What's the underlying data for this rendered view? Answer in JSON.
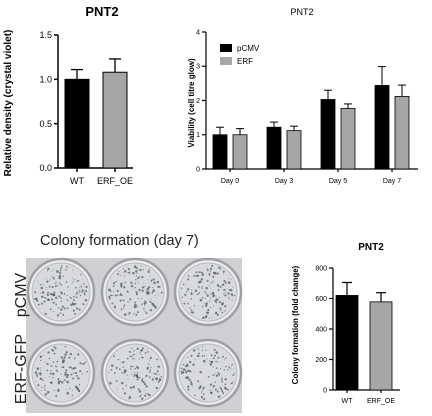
{
  "colors": {
    "black_bar": "#000000",
    "gray_bar": "#a6a6a6",
    "dish_bg": "#d9dadd"
  },
  "chart_data": [
    {
      "type": "bar",
      "title": "PNT2",
      "categories": [
        "WT",
        "ERF_OE"
      ],
      "values": [
        1.0,
        1.08
      ],
      "errors": [
        0.11,
        0.15
      ],
      "colors": [
        "#000000",
        "#a6a6a6"
      ],
      "ylabel": "Relative density (crystal violet)",
      "ylim": [
        0.0,
        1.5
      ],
      "yticks": [
        "0.0",
        "0.5",
        "1.0",
        "1.5"
      ],
      "grid": false
    },
    {
      "type": "bar",
      "title": "PNT2",
      "categories": [
        "Day 0",
        "Day 3",
        "Day 5",
        "Day 7"
      ],
      "series": [
        {
          "name": "pCMV",
          "color": "#000000",
          "values": [
            1.0,
            1.22,
            2.03,
            2.44
          ],
          "errors": [
            0.22,
            0.15,
            0.27,
            0.55
          ]
        },
        {
          "name": "ERF",
          "color": "#a6a6a6",
          "values": [
            1.0,
            1.12,
            1.77,
            2.12
          ],
          "errors": [
            0.18,
            0.13,
            0.13,
            0.33
          ]
        }
      ],
      "ylabel": "Viability (cell titre glow)",
      "ylim": [
        0,
        4
      ],
      "yticks": [
        "0",
        "1",
        "2",
        "3",
        "4"
      ],
      "legend": "top-left",
      "grid": false
    },
    {
      "type": "bar",
      "title": "PNT2",
      "categories": [
        "WT",
        "ERF_OE"
      ],
      "values": [
        620,
        578
      ],
      "errors": [
        85,
        60
      ],
      "colors": [
        "#000000",
        "#a6a6a6"
      ],
      "ylabel": "Colony formation (fold change)",
      "ylim": [
        0,
        800
      ],
      "yticks": [
        "0",
        "200",
        "400",
        "600",
        "800"
      ],
      "grid": false
    }
  ],
  "colony": {
    "title": "Colony formation (day 7)",
    "rows": [
      "pCMV",
      "ERF-GFP"
    ]
  }
}
